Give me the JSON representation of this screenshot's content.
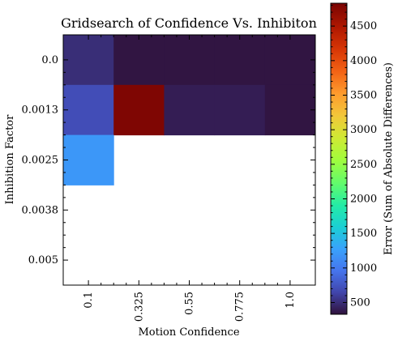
{
  "chart_data": {
    "type": "heatmap",
    "title": "Gridsearch of Confidence Vs. Inhibiton",
    "xlabel": "Motion Confidence",
    "ylabel": "Inhibition Factor",
    "x_ticks": [
      "0.1",
      "0.325",
      "0.55",
      "0.775",
      "1.0"
    ],
    "y_ticks": [
      "0.0",
      "0.0013",
      "0.0025",
      "0.0038",
      "0.005"
    ],
    "grid_x_centers": [
      0.1,
      0.325,
      0.55,
      0.775,
      1.0
    ],
    "grid_y_centers": [
      0.0,
      0.0013,
      0.0025,
      0.0038,
      0.005
    ],
    "values": [
      [
        500,
        350,
        350,
        350,
        350
      ],
      [
        700,
        4800,
        400,
        400,
        350
      ],
      [
        1200,
        null,
        null,
        null,
        null
      ],
      [
        null,
        null,
        null,
        null,
        null
      ],
      [
        null,
        null,
        null,
        null,
        null
      ]
    ],
    "colorbar": {
      "label": "Error (Sum of Absolute Differences)",
      "ticks": [
        "500",
        "1000",
        "1500",
        "2000",
        "2500",
        "3000",
        "3500",
        "4000",
        "4500"
      ],
      "tick_values": [
        500,
        1000,
        1500,
        2000,
        2500,
        3000,
        3500,
        4000,
        4500
      ],
      "range": [
        330,
        4830
      ],
      "colormap": "turbo"
    },
    "grid": false
  }
}
